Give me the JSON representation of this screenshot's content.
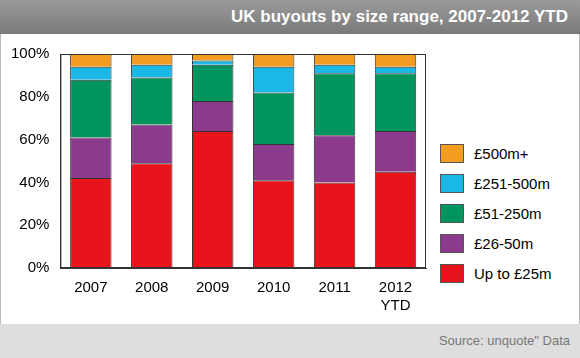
{
  "chart_data": {
    "type": "bar",
    "title": "UK buyouts by size range, 2007-2012 YTD",
    "source": "Source: unquote\" Data",
    "categories": [
      "2007",
      "2008",
      "2009",
      "2010",
      "2011",
      "2012 YTD"
    ],
    "series": [
      {
        "name": "Up to £25m",
        "color": "#e8141c",
        "values": [
          42,
          49,
          64,
          41,
          40,
          45
        ]
      },
      {
        "name": "£26-50m",
        "color": "#8b3a8c",
        "values": [
          19,
          18,
          14,
          17,
          22,
          19
        ]
      },
      {
        "name": "£51-250m",
        "color": "#00945e",
        "values": [
          27,
          22,
          17,
          24,
          29,
          27
        ]
      },
      {
        "name": "£251-500m",
        "color": "#1bb7e6",
        "values": [
          6,
          6,
          2,
          12,
          4,
          3
        ]
      },
      {
        "name": "£500m+",
        "color": "#f39c1f",
        "values": [
          6,
          5,
          3,
          6,
          5,
          6
        ]
      }
    ],
    "ylim": [
      0,
      100
    ],
    "yticks": [
      {
        "value": 0,
        "label": "0%"
      },
      {
        "value": 20,
        "label": "20%"
      },
      {
        "value": 40,
        "label": "40%"
      },
      {
        "value": 60,
        "label": "60%"
      },
      {
        "value": 80,
        "label": "80%"
      },
      {
        "value": 100,
        "label": "100%"
      }
    ],
    "stacked": true,
    "grid": false,
    "legend": "right"
  }
}
